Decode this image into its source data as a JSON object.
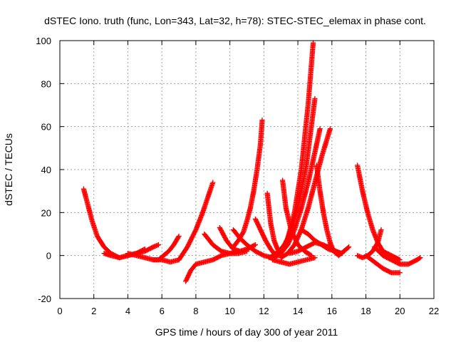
{
  "chart_data": {
    "type": "scatter",
    "title": "dSTEC Iono. truth (func, Lon=343, Lat=32, h=78): STEC-STEC_elemax in phase cont.",
    "xlabel": "GPS time / hours of day 300 of year 2011",
    "ylabel": "dSTEC  / TECUs",
    "xlim": [
      0,
      22
    ],
    "ylim": [
      -20,
      100
    ],
    "xticks": [
      0,
      2,
      4,
      6,
      8,
      10,
      12,
      14,
      16,
      18,
      20,
      22
    ],
    "yticks": [
      -20,
      0,
      20,
      40,
      60,
      80,
      100
    ],
    "grid": true,
    "marker": "plus",
    "color": "#ff0000",
    "series": [
      {
        "x": [
          1.4,
          1.6,
          1.9,
          2.2,
          2.6,
          3.0,
          3.5,
          4.0,
          4.5,
          5.0
        ],
        "y": [
          31,
          25,
          16,
          9,
          4,
          1,
          -1,
          0,
          1,
          3
        ]
      },
      {
        "x": [
          2.6,
          3.0,
          3.5,
          4.0,
          4.5,
          5.0,
          5.5,
          5.8
        ],
        "y": [
          1,
          0,
          -1,
          0,
          1,
          2,
          4,
          5
        ]
      },
      {
        "x": [
          4.0,
          4.5,
          5.0,
          5.5,
          6.0,
          6.5,
          7.0
        ],
        "y": [
          1,
          0,
          -1,
          -2,
          -2,
          -3,
          -2
        ]
      },
      {
        "x": [
          5.5,
          5.8,
          6.1,
          6.4,
          6.7,
          7.0
        ],
        "y": [
          -2,
          -2,
          0,
          2,
          5,
          9
        ]
      },
      {
        "x": [
          7.4,
          7.7,
          8.0,
          8.5,
          9.0,
          9.5,
          10.0,
          10.5
        ],
        "y": [
          -12,
          -7,
          -4,
          -3,
          -2,
          0,
          1,
          2
        ]
      },
      {
        "x": [
          7.0,
          7.5,
          8.0,
          8.4,
          8.7,
          9.0
        ],
        "y": [
          -2,
          4,
          12,
          20,
          27,
          34
        ]
      },
      {
        "x": [
          8.5,
          9.0,
          9.5,
          10.0,
          10.5,
          11.0
        ],
        "y": [
          10,
          5,
          2,
          1,
          1,
          2
        ]
      },
      {
        "x": [
          9.4,
          9.8,
          10.2,
          10.6,
          11.0,
          11.5
        ],
        "y": [
          13,
          7,
          3,
          2,
          3,
          5
        ]
      },
      {
        "x": [
          10.2,
          10.5,
          10.8,
          11.0,
          11.2,
          11.4,
          11.6,
          11.8,
          11.9
        ],
        "y": [
          4,
          7,
          11,
          16,
          22,
          30,
          40,
          52,
          63
        ]
      },
      {
        "x": [
          10.2,
          10.6,
          11.0,
          11.5,
          12.0,
          12.5
        ],
        "y": [
          12,
          8,
          5,
          2,
          0,
          -1
        ]
      },
      {
        "x": [
          11.5,
          11.8,
          12.1,
          12.4,
          12.7
        ],
        "y": [
          17,
          12,
          7,
          3,
          0
        ]
      },
      {
        "x": [
          12.2,
          12.4,
          12.6,
          12.8,
          13.0
        ],
        "y": [
          29,
          15,
          7,
          3,
          1
        ]
      },
      {
        "x": [
          12.3,
          12.6,
          13.0,
          13.4,
          13.8,
          14.2,
          14.6,
          14.9
        ],
        "y": [
          -1,
          0,
          2,
          8,
          20,
          40,
          70,
          99
        ]
      },
      {
        "x": [
          12.5,
          12.9,
          13.3,
          13.7,
          14.1,
          14.5,
          15.0
        ],
        "y": [
          0,
          2,
          6,
          14,
          26,
          42,
          73
        ]
      },
      {
        "x": [
          12.6,
          13.0,
          13.4,
          13.8,
          14.2,
          14.6,
          15.0,
          15.3
        ],
        "y": [
          -1,
          1,
          5,
          12,
          22,
          34,
          48,
          59
        ]
      },
      {
        "x": [
          13.1,
          13.3,
          13.6,
          14.0,
          14.4,
          14.8
        ],
        "y": [
          35,
          22,
          12,
          5,
          2,
          0
        ]
      },
      {
        "x": [
          13.0,
          13.4,
          13.8,
          14.2,
          14.6,
          15.0,
          15.4,
          15.9
        ],
        "y": [
          -1,
          1,
          5,
          12,
          22,
          34,
          46,
          59
        ]
      },
      {
        "x": [
          12.5,
          13.0,
          13.5,
          14.0,
          14.5,
          15.0
        ],
        "y": [
          -2,
          -3,
          -4,
          -3,
          -2,
          -1
        ]
      },
      {
        "x": [
          13.5,
          14.0,
          14.5,
          15.0,
          15.5,
          16.0,
          16.5
        ],
        "y": [
          1,
          2,
          4,
          6,
          5,
          3,
          1
        ]
      },
      {
        "x": [
          14.2,
          14.6,
          15.0,
          15.4,
          15.8,
          16.2,
          16.6
        ],
        "y": [
          12,
          10,
          7,
          5,
          3,
          2,
          1
        ]
      },
      {
        "x": [
          15.1,
          15.3,
          15.5,
          15.7,
          15.9,
          16.1
        ],
        "y": [
          42,
          30,
          20,
          12,
          6,
          2
        ]
      },
      {
        "x": [
          15.8,
          16.1,
          16.4,
          16.7,
          17.0
        ],
        "y": [
          5,
          2,
          0,
          2,
          4
        ]
      },
      {
        "x": [
          17.5,
          17.8,
          18.1,
          18.4,
          18.7,
          19.0,
          19.5,
          20.0
        ],
        "y": [
          42,
          30,
          20,
          12,
          6,
          2,
          0,
          -2
        ]
      },
      {
        "x": [
          17.5,
          17.8,
          18.1,
          18.4,
          18.7,
          18.9
        ],
        "y": [
          0,
          -1,
          0,
          2,
          6,
          12
        ]
      },
      {
        "x": [
          18.0,
          18.5,
          19.0,
          19.5,
          20.0
        ],
        "y": [
          0,
          -3,
          -6,
          -8,
          -8
        ]
      },
      {
        "x": [
          18.5,
          19.0,
          19.5,
          20.0,
          20.5,
          21.0,
          21.2
        ],
        "y": [
          4,
          0,
          -2,
          -4,
          -4,
          -2,
          -1
        ]
      }
    ]
  }
}
